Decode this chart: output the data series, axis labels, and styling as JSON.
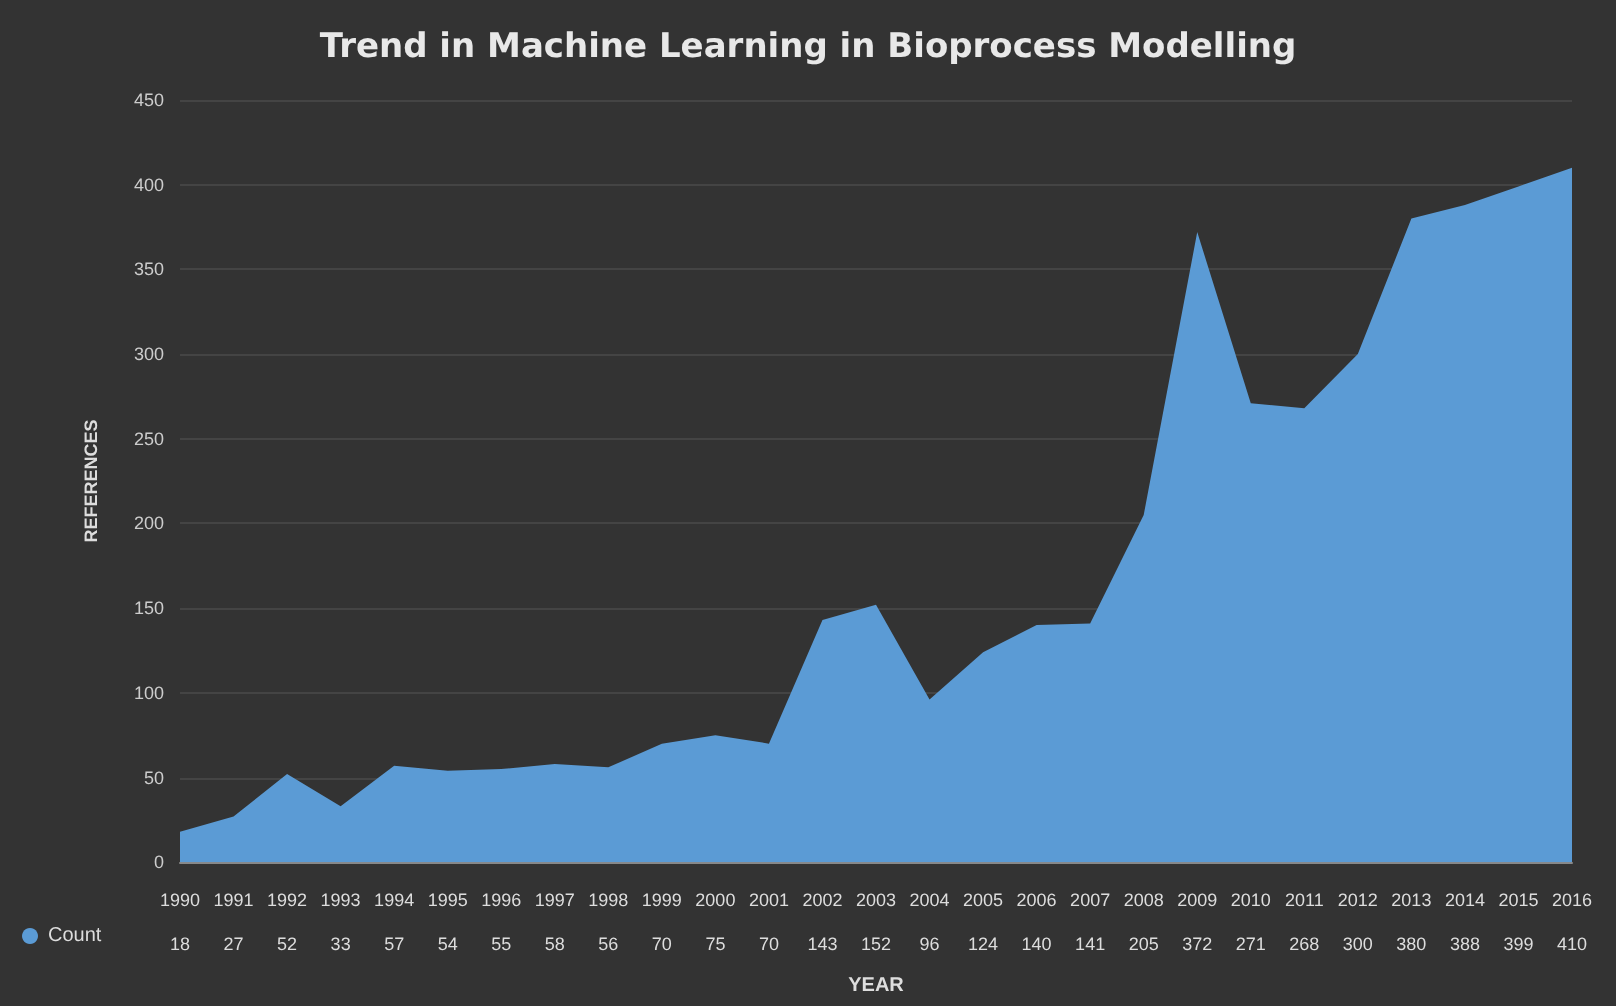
{
  "chart_data": {
    "type": "area",
    "title": "Trend in Machine Learning in Bioprocess Modelling",
    "xlabel": "YEAR",
    "ylabel": "REFERENCES",
    "categories": [
      "1990",
      "1991",
      "1992",
      "1993",
      "1994",
      "1995",
      "1996",
      "1997",
      "1998",
      "1999",
      "2000",
      "2001",
      "2002",
      "2003",
      "2004",
      "2005",
      "2006",
      "2007",
      "2008",
      "2009",
      "2010",
      "2011",
      "2012",
      "2013",
      "2014",
      "2015",
      "2016"
    ],
    "series": [
      {
        "name": "Count",
        "color": "#5b9bd5",
        "values": [
          18,
          27,
          52,
          33,
          57,
          54,
          55,
          58,
          56,
          70,
          75,
          70,
          143,
          152,
          96,
          124,
          140,
          141,
          205,
          372,
          271,
          268,
          300,
          380,
          388,
          399,
          410
        ]
      }
    ],
    "ylim": [
      0,
      450
    ],
    "yticks": [
      0,
      50,
      100,
      150,
      200,
      250,
      300,
      350,
      400,
      450
    ],
    "grid": "y",
    "legend": "bottom left",
    "data_labels": true,
    "marker": "none"
  }
}
